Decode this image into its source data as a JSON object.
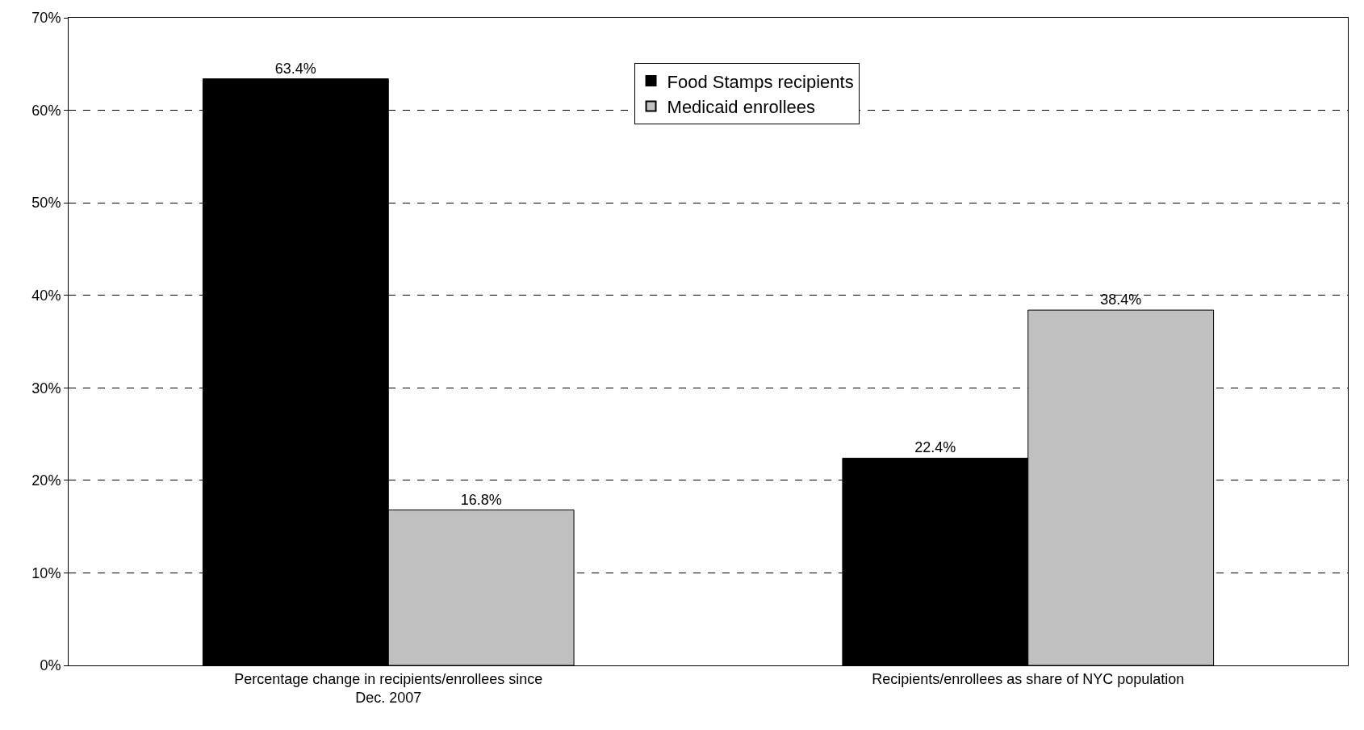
{
  "chart_data": {
    "type": "bar",
    "categories": [
      "Percentage change in recipients/enrollees since Dec. 2007",
      "Recipients/enrollees as share of NYC population"
    ],
    "series": [
      {
        "name": "Food Stamps recipients",
        "color": "#000000",
        "values": [
          63.4,
          22.4
        ],
        "value_labels": [
          "63.4%",
          "22.4%"
        ]
      },
      {
        "name": "Medicaid enrollees",
        "color": "#c0c0c0",
        "values": [
          16.8,
          38.4
        ],
        "value_labels": [
          "16.8%",
          "38.4%"
        ]
      }
    ],
    "ylim": [
      0,
      70
    ],
    "yticks": [
      {
        "value": 0,
        "label": "0%"
      },
      {
        "value": 10,
        "label": "10%"
      },
      {
        "value": 20,
        "label": "20%"
      },
      {
        "value": 30,
        "label": "30%"
      },
      {
        "value": 40,
        "label": "40%"
      },
      {
        "value": 50,
        "label": "50%"
      },
      {
        "value": 60,
        "label": "60%"
      },
      {
        "value": 70,
        "label": "70%"
      }
    ],
    "grid": "y",
    "line_style": "dashed",
    "legend": "top"
  }
}
